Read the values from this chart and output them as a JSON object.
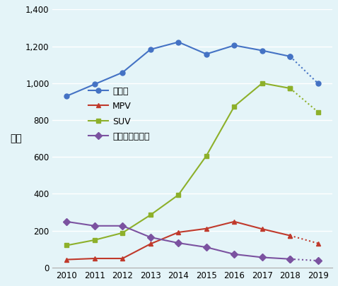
{
  "years": [
    2010,
    2011,
    2012,
    2013,
    2014,
    2015,
    2016,
    2017,
    2018,
    2019
  ],
  "sedan": [
    930,
    994,
    1058,
    1183,
    1223,
    1158,
    1205,
    1177,
    1145,
    998
  ],
  "mpv": [
    43,
    49,
    49,
    128,
    191,
    211,
    249,
    209,
    173,
    131
  ],
  "suv": [
    120,
    149,
    188,
    285,
    394,
    606,
    874,
    1000,
    972,
    843
  ],
  "cross": [
    249,
    226,
    226,
    164,
    133,
    110,
    72,
    55,
    46,
    37
  ],
  "sedan_color": "#4472C4",
  "mpv_color": "#C0392B",
  "suv_color": "#8DB02A",
  "cross_color": "#7B52A0",
  "bg_color": "#E4F4F8",
  "legend_labels": [
    "セダン",
    "MPV",
    "SUV",
    "クロスオーバー"
  ],
  "ylabel": "万台",
  "ylim": [
    0,
    1400
  ],
  "yticks": [
    0,
    200,
    400,
    600,
    800,
    1000,
    1200,
    1400
  ]
}
